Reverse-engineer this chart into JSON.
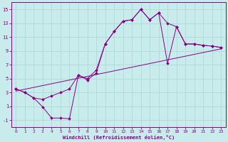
{
  "xlabel": "Windchill (Refroidissement éolien,°C)",
  "bg_color": "#c8ecec",
  "grid_color": "#b0d8d8",
  "line_color": "#880088",
  "xlim": [
    -0.5,
    23.5
  ],
  "ylim": [
    -2,
    16
  ],
  "xticks": [
    0,
    1,
    2,
    3,
    4,
    5,
    6,
    7,
    8,
    9,
    10,
    11,
    12,
    13,
    14,
    15,
    16,
    17,
    18,
    19,
    20,
    21,
    22,
    23
  ],
  "yticks": [
    -1,
    1,
    3,
    5,
    7,
    9,
    11,
    13,
    15
  ],
  "hours": [
    0,
    1,
    2,
    3,
    4,
    5,
    6,
    7,
    8,
    9,
    10,
    11,
    12,
    13,
    14,
    15,
    16,
    17,
    18,
    19,
    20,
    21,
    22,
    23
  ],
  "temp": [
    3.5,
    3.0,
    2.2,
    2.0,
    2.5,
    3.0,
    3.5,
    5.5,
    5.0,
    6.2,
    10.0,
    11.8,
    13.3,
    13.5,
    15.0,
    13.5,
    14.5,
    13.0,
    12.5,
    10.0,
    10.0,
    9.8,
    9.7,
    9.5
  ],
  "windchill": [
    3.5,
    3.0,
    2.2,
    0.9,
    -0.7,
    -0.7,
    -0.8,
    5.5,
    4.8,
    5.8,
    10.0,
    11.8,
    13.3,
    13.5,
    15.0,
    13.5,
    14.5,
    7.2,
    12.5,
    10.0,
    10.0,
    9.8,
    9.7,
    9.5
  ],
  "trend_start_y": 3.2,
  "trend_end_y": 9.3
}
